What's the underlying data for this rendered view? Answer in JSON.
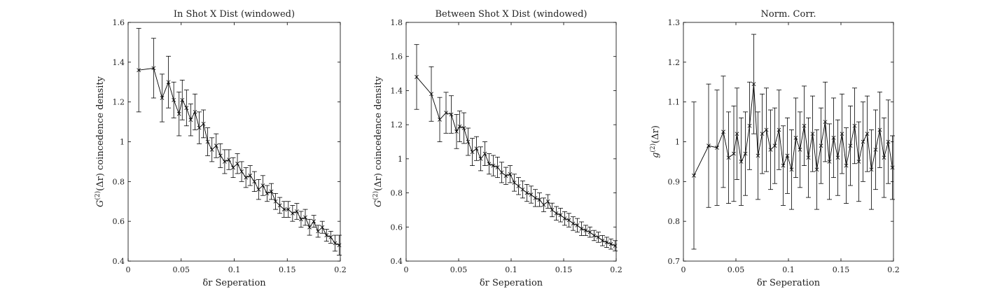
{
  "figure": {
    "background": "#ffffff",
    "line_color": "#000000"
  },
  "chart_data": [
    {
      "type": "line",
      "title": "In Shot X Dist (windowed)",
      "xlabel": "δr Seperation",
      "ylabel": "G(2)(Δr) coincedence density",
      "ylabel_main": "G",
      "ylabel_sup": "(2)",
      "ylabel_rest": "(Δr) coincedence density",
      "xlim": [
        0,
        0.2
      ],
      "ylim": [
        0.4,
        1.6
      ],
      "xticks": [
        0,
        0.05,
        0.1,
        0.15,
        0.2
      ],
      "yticks": [
        0.4,
        0.6,
        0.8,
        1,
        1.2,
        1.4,
        1.6
      ],
      "xtick_labels": [
        "0",
        "0.05",
        "0.1",
        "0.15",
        "0.2"
      ],
      "ytick_labels": [
        "0.4",
        "0.6",
        "0.8",
        "1",
        "1.2",
        "1.4",
        "1.6"
      ],
      "marker": "x",
      "grid": false,
      "series": [
        {
          "x": [
            0.01,
            0.024,
            0.032,
            0.038,
            0.043,
            0.048,
            0.051,
            0.055,
            0.059,
            0.063,
            0.067,
            0.071,
            0.075,
            0.079,
            0.083,
            0.087,
            0.091,
            0.095,
            0.099,
            0.103,
            0.107,
            0.111,
            0.115,
            0.119,
            0.123,
            0.127,
            0.131,
            0.135,
            0.139,
            0.143,
            0.147,
            0.151,
            0.155,
            0.159,
            0.163,
            0.167,
            0.171,
            0.175,
            0.179,
            0.183,
            0.187,
            0.191,
            0.195,
            0.199
          ],
          "y": [
            1.36,
            1.37,
            1.22,
            1.3,
            1.21,
            1.14,
            1.21,
            1.17,
            1.11,
            1.15,
            1.07,
            1.09,
            1.0,
            0.96,
            0.98,
            0.93,
            0.9,
            0.91,
            0.87,
            0.89,
            0.85,
            0.82,
            0.83,
            0.8,
            0.76,
            0.78,
            0.74,
            0.75,
            0.7,
            0.68,
            0.66,
            0.66,
            0.64,
            0.65,
            0.61,
            0.62,
            0.57,
            0.6,
            0.55,
            0.57,
            0.53,
            0.52,
            0.49,
            0.48
          ],
          "err": [
            0.21,
            0.15,
            0.12,
            0.13,
            0.09,
            0.11,
            0.1,
            0.09,
            0.08,
            0.09,
            0.08,
            0.07,
            0.07,
            0.06,
            0.06,
            0.06,
            0.06,
            0.05,
            0.05,
            0.05,
            0.05,
            0.05,
            0.05,
            0.05,
            0.05,
            0.05,
            0.04,
            0.04,
            0.04,
            0.04,
            0.04,
            0.04,
            0.04,
            0.04,
            0.04,
            0.04,
            0.04,
            0.03,
            0.03,
            0.03,
            0.03,
            0.03,
            0.04,
            0.05
          ]
        }
      ]
    },
    {
      "type": "line",
      "title": "Between Shot X Dist (windowed)",
      "xlabel": "δr Seperation",
      "ylabel": "G(2)(Δr) coincedence density",
      "ylabel_main": "G",
      "ylabel_sup": "(2)",
      "ylabel_rest": "(Δr) coincedence density",
      "xlim": [
        0,
        0.2
      ],
      "ylim": [
        0.4,
        1.8
      ],
      "xticks": [
        0,
        0.05,
        0.1,
        0.15,
        0.2
      ],
      "yticks": [
        0.4,
        0.6,
        0.8,
        1,
        1.2,
        1.4,
        1.6,
        1.8
      ],
      "xtick_labels": [
        "0",
        "0.05",
        "0.1",
        "0.15",
        "0.2"
      ],
      "ytick_labels": [
        "0.4",
        "0.6",
        "0.8",
        "1",
        "1.2",
        "1.4",
        "1.6",
        "1.8"
      ],
      "marker": "x",
      "grid": false,
      "series": [
        {
          "x": [
            0.01,
            0.024,
            0.032,
            0.038,
            0.043,
            0.048,
            0.051,
            0.055,
            0.059,
            0.063,
            0.067,
            0.071,
            0.075,
            0.079,
            0.083,
            0.087,
            0.091,
            0.095,
            0.099,
            0.103,
            0.107,
            0.111,
            0.115,
            0.119,
            0.123,
            0.127,
            0.131,
            0.135,
            0.139,
            0.143,
            0.147,
            0.151,
            0.155,
            0.159,
            0.163,
            0.167,
            0.171,
            0.175,
            0.179,
            0.183,
            0.187,
            0.191,
            0.195,
            0.199
          ],
          "y": [
            1.48,
            1.38,
            1.23,
            1.27,
            1.26,
            1.16,
            1.19,
            1.18,
            1.1,
            1.04,
            1.06,
            1.0,
            1.03,
            0.97,
            0.96,
            0.95,
            0.92,
            0.9,
            0.91,
            0.86,
            0.84,
            0.82,
            0.8,
            0.79,
            0.77,
            0.76,
            0.73,
            0.75,
            0.7,
            0.68,
            0.67,
            0.65,
            0.64,
            0.62,
            0.61,
            0.59,
            0.58,
            0.57,
            0.55,
            0.54,
            0.52,
            0.51,
            0.5,
            0.49
          ],
          "err": [
            0.19,
            0.16,
            0.13,
            0.12,
            0.11,
            0.1,
            0.09,
            0.09,
            0.08,
            0.08,
            0.07,
            0.07,
            0.07,
            0.06,
            0.06,
            0.06,
            0.06,
            0.05,
            0.05,
            0.05,
            0.05,
            0.05,
            0.05,
            0.05,
            0.05,
            0.04,
            0.04,
            0.04,
            0.04,
            0.04,
            0.04,
            0.04,
            0.04,
            0.04,
            0.04,
            0.04,
            0.03,
            0.03,
            0.03,
            0.03,
            0.03,
            0.03,
            0.03,
            0.03
          ]
        }
      ]
    },
    {
      "type": "line",
      "title": "Norm. Corr.",
      "xlabel": "δr Seperation",
      "ylabel": "g(2)(Δr)",
      "ylabel_main": "g",
      "ylabel_sup": "(2)",
      "ylabel_rest": "(Δr)",
      "xlim": [
        0,
        0.2
      ],
      "ylim": [
        0.7,
        1.3
      ],
      "xticks": [
        0,
        0.05,
        0.1,
        0.15,
        0.2
      ],
      "yticks": [
        0.7,
        0.8,
        0.9,
        1,
        1.1,
        1.2,
        1.3
      ],
      "xtick_labels": [
        "0",
        "0.05",
        "0.1",
        "0.15",
        "0.2"
      ],
      "ytick_labels": [
        "0.7",
        "0.8",
        "0.9",
        "1",
        "1.1",
        "1.2",
        "1.3"
      ],
      "marker": "x",
      "grid": false,
      "series": [
        {
          "x": [
            0.01,
            0.024,
            0.032,
            0.038,
            0.043,
            0.048,
            0.051,
            0.055,
            0.059,
            0.063,
            0.067,
            0.071,
            0.075,
            0.079,
            0.083,
            0.087,
            0.091,
            0.095,
            0.099,
            0.103,
            0.107,
            0.111,
            0.115,
            0.119,
            0.123,
            0.127,
            0.131,
            0.135,
            0.139,
            0.143,
            0.147,
            0.151,
            0.155,
            0.159,
            0.163,
            0.167,
            0.171,
            0.175,
            0.179,
            0.183,
            0.187,
            0.191,
            0.195,
            0.199
          ],
          "y": [
            0.915,
            0.99,
            0.985,
            1.025,
            0.96,
            0.97,
            1.02,
            0.95,
            0.97,
            1.04,
            1.145,
            0.965,
            1.02,
            1.03,
            0.98,
            0.99,
            1.03,
            0.94,
            0.965,
            0.93,
            1.01,
            0.98,
            1.04,
            0.96,
            1.02,
            0.93,
            0.99,
            1.05,
            0.95,
            1.01,
            0.96,
            1.02,
            0.94,
            0.99,
            1.04,
            0.95,
            1.0,
            1.02,
            0.93,
            0.98,
            1.03,
            0.96,
            1.0,
            0.935
          ],
          "err": [
            0.185,
            0.155,
            0.145,
            0.14,
            0.115,
            0.12,
            0.115,
            0.11,
            0.105,
            0.11,
            0.125,
            0.11,
            0.1,
            0.105,
            0.1,
            0.095,
            0.1,
            0.1,
            0.095,
            0.1,
            0.1,
            0.095,
            0.1,
            0.1,
            0.095,
            0.1,
            0.095,
            0.1,
            0.095,
            0.1,
            0.095,
            0.1,
            0.095,
            0.1,
            0.095,
            0.1,
            0.1,
            0.095,
            0.1,
            0.1,
            0.095,
            0.1,
            0.105,
            0.08
          ]
        }
      ]
    }
  ]
}
